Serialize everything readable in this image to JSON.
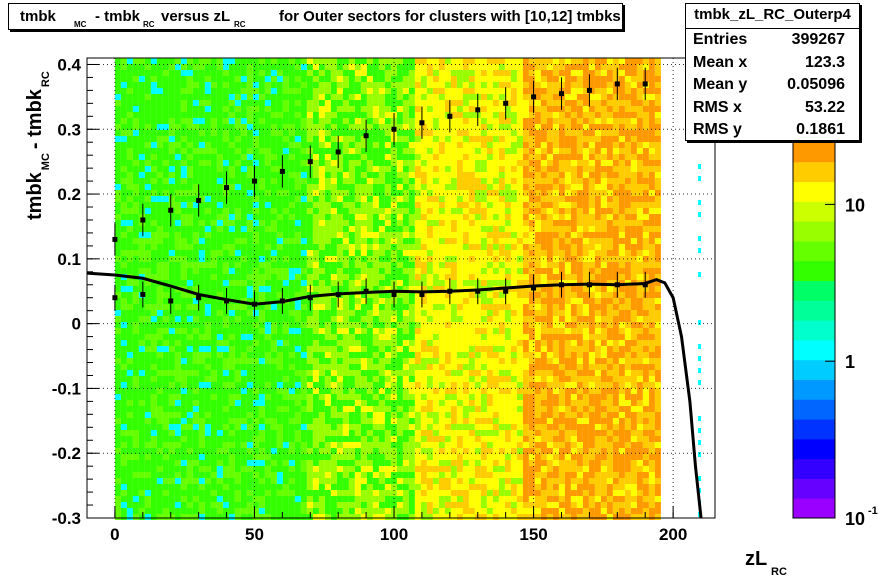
{
  "title": {
    "p1": "tmbk",
    "s1": "MC",
    "p2": "- tmbk",
    "s2": "RC",
    "p3": "versus zL",
    "s3": "RC",
    "p4": "for Outer sectors for clusters with [10,12] tmbks"
  },
  "stats": {
    "name": "tmbk_zL_RC_Outerp4",
    "rows": [
      {
        "label": "Entries",
        "value": "399267"
      },
      {
        "label": "Mean x",
        "value": "123.3"
      },
      {
        "label": "Mean y",
        "value": "0.05096"
      },
      {
        "label": "RMS x",
        "value": "53.22"
      },
      {
        "label": "RMS y",
        "value": "0.1861"
      }
    ]
  },
  "axes": {
    "x_main": "zL",
    "x_sub": "RC",
    "y_a": "tmbk",
    "y_a_sub": "MC",
    "y_b": "- tmbk",
    "y_b_sub": "RC"
  },
  "palette": {
    "orange": "#ff9900",
    "yellow": "#ffff00",
    "green": "#33ff00",
    "cyan": "#00ffff",
    "blue": "#0000ff",
    "purple": "#9900ff"
  },
  "chart_data": {
    "type": "heatmap",
    "xlim": [
      -10,
      215
    ],
    "ylim": [
      -0.3,
      0.41
    ],
    "x_ticks": [
      "0",
      "50",
      "100",
      "150",
      "200"
    ],
    "y_ticks": [
      "-0.3",
      "-0.2",
      "-0.1",
      "0",
      "0.1",
      "0.2",
      "0.3",
      "0.4"
    ],
    "grid": true,
    "z_scale": "log",
    "z_ticks": [
      {
        "value": 10,
        "label": "10"
      },
      {
        "value": 1,
        "label": "1"
      },
      {
        "value": 0.1,
        "label": "10",
        "exp": "-1"
      }
    ],
    "upper_profile": {
      "x": [
        0,
        10,
        20,
        30,
        40,
        50,
        60,
        70,
        80,
        90,
        100,
        110,
        120,
        130,
        140,
        150,
        160,
        170,
        180,
        190
      ],
      "y": [
        0.13,
        0.16,
        0.175,
        0.19,
        0.21,
        0.22,
        0.235,
        0.25,
        0.265,
        0.29,
        0.3,
        0.31,
        0.32,
        0.33,
        0.34,
        0.35,
        0.355,
        0.36,
        0.37,
        0.37
      ]
    },
    "lower_profile": {
      "x": [
        0,
        10,
        20,
        30,
        40,
        50,
        60,
        70,
        80,
        90,
        100,
        110,
        120,
        130,
        140,
        150,
        160,
        170,
        180,
        190
      ],
      "y": [
        0.04,
        0.045,
        0.035,
        0.04,
        0.035,
        0.03,
        0.035,
        0.04,
        0.045,
        0.05,
        0.045,
        0.045,
        0.05,
        0.05,
        0.05,
        0.055,
        0.06,
        0.06,
        0.06,
        0.06
      ]
    },
    "fit_curve": {
      "x": [
        -10,
        0,
        10,
        20,
        30,
        40,
        50,
        60,
        70,
        80,
        90,
        100,
        110,
        120,
        130,
        140,
        150,
        160,
        170,
        180,
        190,
        194,
        197,
        200,
        203,
        206,
        208,
        210
      ],
      "y": [
        0.078,
        0.075,
        0.07,
        0.058,
        0.045,
        0.037,
        0.03,
        0.034,
        0.042,
        0.046,
        0.048,
        0.05,
        0.049,
        0.05,
        0.052,
        0.055,
        0.058,
        0.06,
        0.061,
        0.06,
        0.062,
        0.068,
        0.063,
        0.04,
        -0.02,
        -0.12,
        -0.22,
        -0.3
      ]
    }
  }
}
